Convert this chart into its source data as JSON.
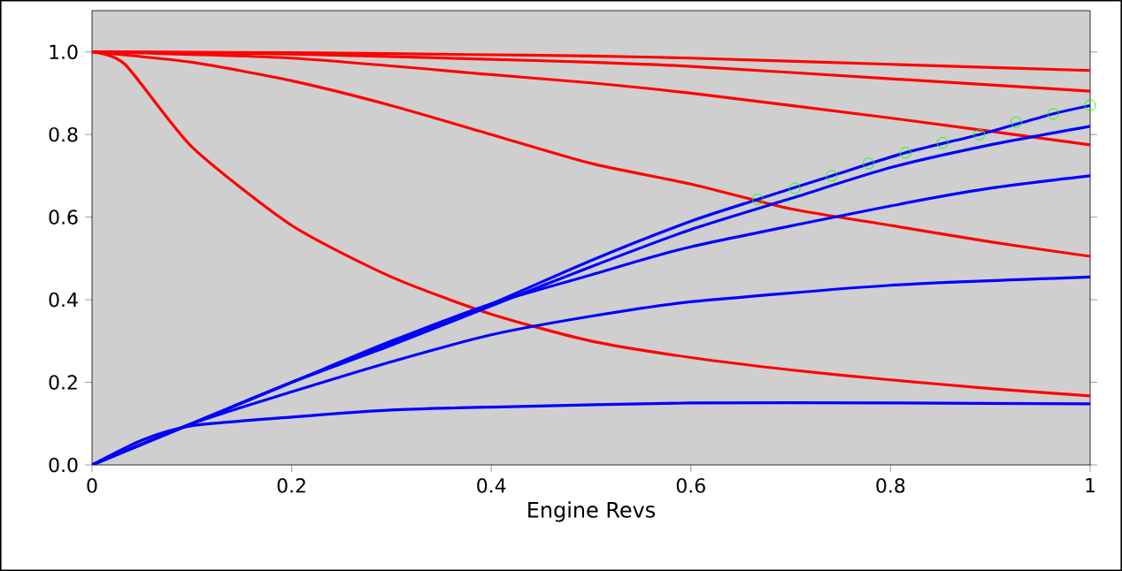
{
  "chart_data": {
    "type": "line",
    "xlabel": "Engine Revs",
    "xlim": [
      0,
      1
    ],
    "ylim": [
      0,
      1.1
    ],
    "xticks": [
      {
        "value": 0,
        "label": "0"
      },
      0.2,
      0.4,
      0.6,
      0.8,
      {
        "value": 1,
        "label": "1"
      }
    ],
    "yticks": [
      {
        "value": 0,
        "label": "0.0"
      },
      0.2,
      0.4,
      0.6,
      0.8,
      {
        "value": 1,
        "label": "1.0"
      }
    ],
    "grid": false,
    "marker": "none",
    "line_style": "solid",
    "series": [
      {
        "color": "#ff0000",
        "x": [
          0,
          0.2,
          0.4,
          0.5,
          0.6,
          0.8,
          1
        ],
        "values": [
          1,
          0.998,
          0.993,
          0.99,
          0.985,
          0.97,
          0.955
        ]
      },
      {
        "color": "#ff0000",
        "x": [
          0,
          0.2,
          0.4,
          0.5,
          0.6,
          0.8,
          1
        ],
        "values": [
          1,
          0.995,
          0.982,
          0.975,
          0.965,
          0.935,
          0.905
        ]
      },
      {
        "color": "#ff0000",
        "x": [
          0,
          0.2,
          0.4,
          0.5,
          0.6,
          0.8,
          1
        ],
        "values": [
          1,
          0.985,
          0.945,
          0.925,
          0.9,
          0.84,
          0.775
        ]
      },
      {
        "color": "#ff0000",
        "x": [
          0,
          0.1,
          0.2,
          0.3,
          0.4,
          0.5,
          0.6,
          0.7,
          0.8,
          0.9,
          1
        ],
        "values": [
          1,
          0.975,
          0.93,
          0.87,
          0.8,
          0.73,
          0.68,
          0.62,
          0.58,
          0.54,
          0.505
        ]
      },
      {
        "color": "#ff0000",
        "x": [
          0,
          0.033,
          0.1,
          0.2,
          0.3,
          0.4,
          0.5,
          0.6,
          0.7,
          0.8,
          0.9,
          1
        ],
        "values": [
          1,
          0.97,
          0.77,
          0.58,
          0.455,
          0.365,
          0.3,
          0.26,
          0.23,
          0.206,
          0.185,
          0.167
        ]
      },
      {
        "color": "#0000ff",
        "x": [
          0,
          0.1,
          0.2,
          0.3,
          0.4,
          0.5,
          0.6,
          0.667,
          0.741,
          0.815,
          0.889,
          0.963,
          1
        ],
        "values": [
          0,
          0.1,
          0.2,
          0.295,
          0.39,
          0.495,
          0.59,
          0.643,
          0.7,
          0.756,
          0.8,
          0.85,
          0.87
        ]
      },
      {
        "color": "#0000ff",
        "x": [
          0,
          0.1,
          0.2,
          0.3,
          0.4,
          0.5,
          0.6,
          0.7,
          0.8,
          0.9,
          1
        ],
        "values": [
          0,
          0.1,
          0.2,
          0.29,
          0.385,
          0.48,
          0.57,
          0.645,
          0.72,
          0.775,
          0.82
        ]
      },
      {
        "color": "#0000ff",
        "x": [
          0,
          0.1,
          0.2,
          0.3,
          0.4,
          0.5,
          0.6,
          0.8,
          0.9,
          1
        ],
        "values": [
          0,
          0.1,
          0.2,
          0.3,
          0.39,
          0.46,
          0.528,
          0.627,
          0.67,
          0.7
        ]
      },
      {
        "color": "#0000ff",
        "x": [
          0,
          0.1,
          0.2,
          0.3,
          0.4,
          0.5,
          0.6,
          0.8,
          1
        ],
        "values": [
          0,
          0.1,
          0.177,
          0.25,
          0.315,
          0.36,
          0.395,
          0.435,
          0.455
        ]
      },
      {
        "color": "#0000ff",
        "x": [
          0,
          0.05,
          0.1,
          0.2,
          0.3,
          0.4,
          0.6,
          0.8,
          1
        ],
        "values": [
          0,
          0.06,
          0.095,
          0.116,
          0.133,
          0.14,
          0.15,
          0.15,
          0.148
        ]
      },
      {
        "type": "scatter",
        "marker": "circle",
        "color": "#00ff00",
        "x": [
          0.667,
          0.704,
          0.741,
          0.778,
          0.815,
          0.852,
          0.889,
          0.926,
          0.963,
          1
        ],
        "values": [
          0.643,
          0.67,
          0.7,
          0.73,
          0.756,
          0.78,
          0.8,
          0.83,
          0.85,
          0.871
        ]
      }
    ]
  }
}
